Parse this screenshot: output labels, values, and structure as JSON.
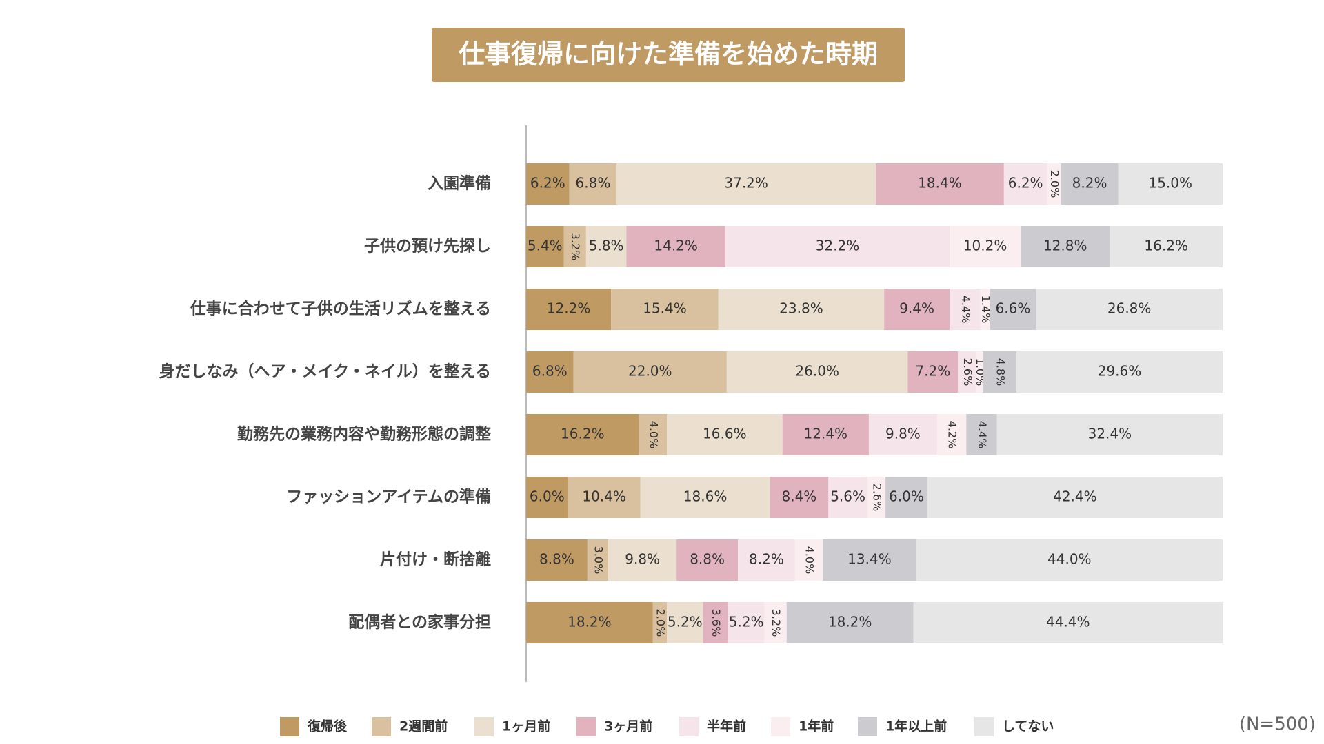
{
  "chart_data": {
    "type": "stacked_barh",
    "title": "仕事復帰に向けた準備を始めた時期",
    "note": "(N=500)",
    "categories": [
      "入園準備",
      "子供の預け先探し",
      "仕事に合わせて子供の生活リズムを整える",
      "身だしなみ（ヘア・メイク・ネイル）を整える",
      "勤務先の業務内容や勤務形態の調整",
      "ファッションアイテムの準備",
      "片付け・断捨離",
      "配偶者との家事分担"
    ],
    "xlim": [
      0,
      100
    ],
    "series": [
      {
        "name": "復帰後",
        "color": "#c09a63",
        "values": [
          6.2,
          5.4,
          12.2,
          6.8,
          16.2,
          6.0,
          8.8,
          18.2
        ],
        "value_labels": [
          "6.2%",
          "5.4%",
          "12.2%",
          "6.8%",
          "16.2%",
          "6.0%",
          "8.8%",
          "18.2%"
        ]
      },
      {
        "name": "2週間前",
        "color": "#d9c09e",
        "values": [
          6.8,
          3.2,
          15.4,
          22.0,
          4.0,
          10.4,
          3.0,
          2.0
        ],
        "value_labels": [
          "6.8%",
          "3.2%",
          "15.4%",
          "22.0%",
          "4.0%",
          "10.4%",
          "3.0%",
          "2.0%"
        ]
      },
      {
        "name": "1ヶ月前",
        "color": "#ebe0cf",
        "values": [
          37.2,
          5.8,
          23.8,
          26.0,
          16.6,
          18.6,
          9.8,
          5.2
        ],
        "value_labels": [
          "37.2%",
          "5.8%",
          "23.8%",
          "26.0%",
          "16.6%",
          "18.6%",
          "9.8%",
          "5.2%"
        ]
      },
      {
        "name": "3ヶ月前",
        "color": "#e0b3bf",
        "values": [
          18.4,
          14.2,
          9.4,
          7.2,
          12.4,
          8.4,
          8.8,
          3.6
        ],
        "value_labels": [
          "18.4%",
          "14.2%",
          "9.4%",
          "7.2%",
          "12.4%",
          "8.4%",
          "8.8%",
          "3.6%"
        ]
      },
      {
        "name": "半年前",
        "color": "#f5e4e9",
        "values": [
          6.2,
          32.2,
          4.4,
          2.6,
          9.8,
          5.6,
          8.2,
          5.2
        ],
        "value_labels": [
          "6.2%",
          "32.2%",
          "4.4%",
          "2.6%",
          "9.8%",
          "5.6%",
          "8.2%",
          "5.2%"
        ]
      },
      {
        "name": "1年前",
        "color": "#faeef1",
        "values": [
          2.0,
          10.2,
          1.4,
          1.0,
          4.2,
          2.6,
          4.0,
          3.2
        ],
        "value_labels": [
          "2.0%",
          "10.2%",
          "1.4%",
          "1.0%",
          "4.2%",
          "2.6%",
          "4.0%",
          "3.2%"
        ]
      },
      {
        "name": "1年以上前",
        "color": "#cccbd0",
        "values": [
          8.2,
          12.8,
          6.6,
          4.8,
          4.4,
          6.0,
          13.4,
          18.2
        ],
        "value_labels": [
          "8.2%",
          "12.8%",
          "6.6%",
          "4.8%",
          "4.4%",
          "6.0%",
          "13.4%",
          "18.2%"
        ]
      },
      {
        "name": "してない",
        "color": "#e6e6e6",
        "values": [
          15.0,
          16.2,
          26.8,
          29.6,
          32.4,
          42.4,
          44.0,
          44.4
        ],
        "value_labels": [
          "15.0%",
          "16.2%",
          "26.8%",
          "29.6%",
          "32.4%",
          "42.4%",
          "44.0%",
          "44.4%"
        ]
      }
    ]
  }
}
